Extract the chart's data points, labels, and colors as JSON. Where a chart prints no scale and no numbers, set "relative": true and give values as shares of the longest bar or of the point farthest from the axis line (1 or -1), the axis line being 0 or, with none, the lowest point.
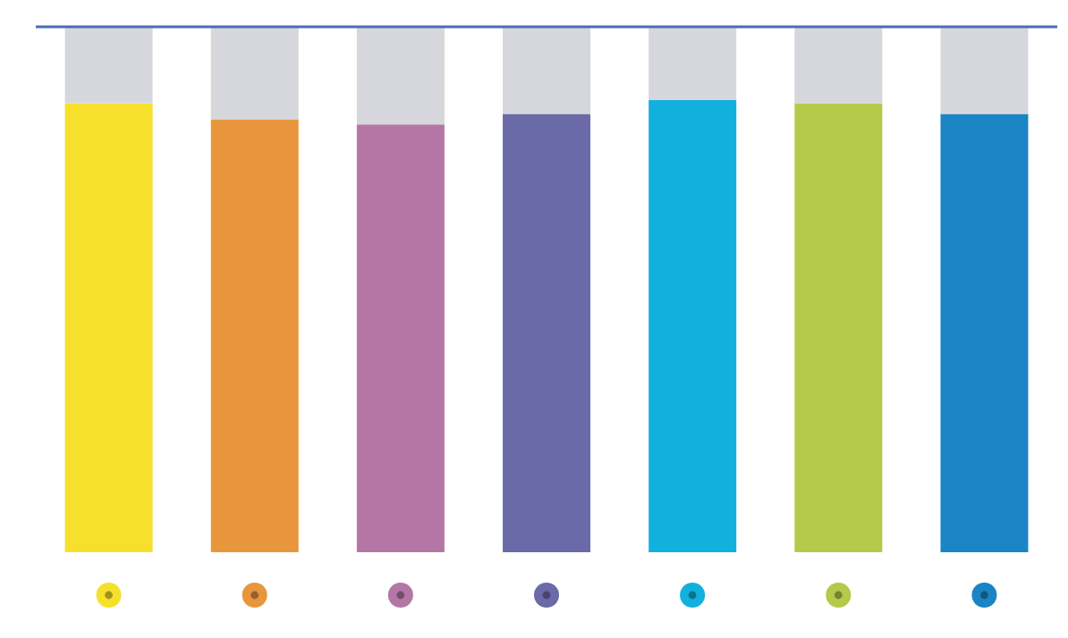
{
  "chart_data": {
    "type": "bar",
    "relative": true,
    "stacked": true,
    "categories": [
      null,
      null,
      null,
      null,
      null,
      null,
      null
    ],
    "series": [
      {
        "colors": [
          "#f7e02c",
          "#e8963c",
          "#b477a5",
          "#6a6aa8",
          "#12b0dd",
          "#b5c94a",
          "#1b84c4"
        ],
        "values": [
          0.854,
          0.824,
          0.814,
          0.834,
          0.861,
          0.854,
          0.834
        ]
      },
      {
        "color": "#d6d7dc",
        "values": [
          0.146,
          0.176,
          0.186,
          0.166,
          0.139,
          0.146,
          0.166
        ]
      }
    ],
    "ref_lines": [
      {
        "axis": "y",
        "value": 1,
        "color": "#4a6cb5"
      }
    ],
    "grid": false,
    "legend": false
  }
}
